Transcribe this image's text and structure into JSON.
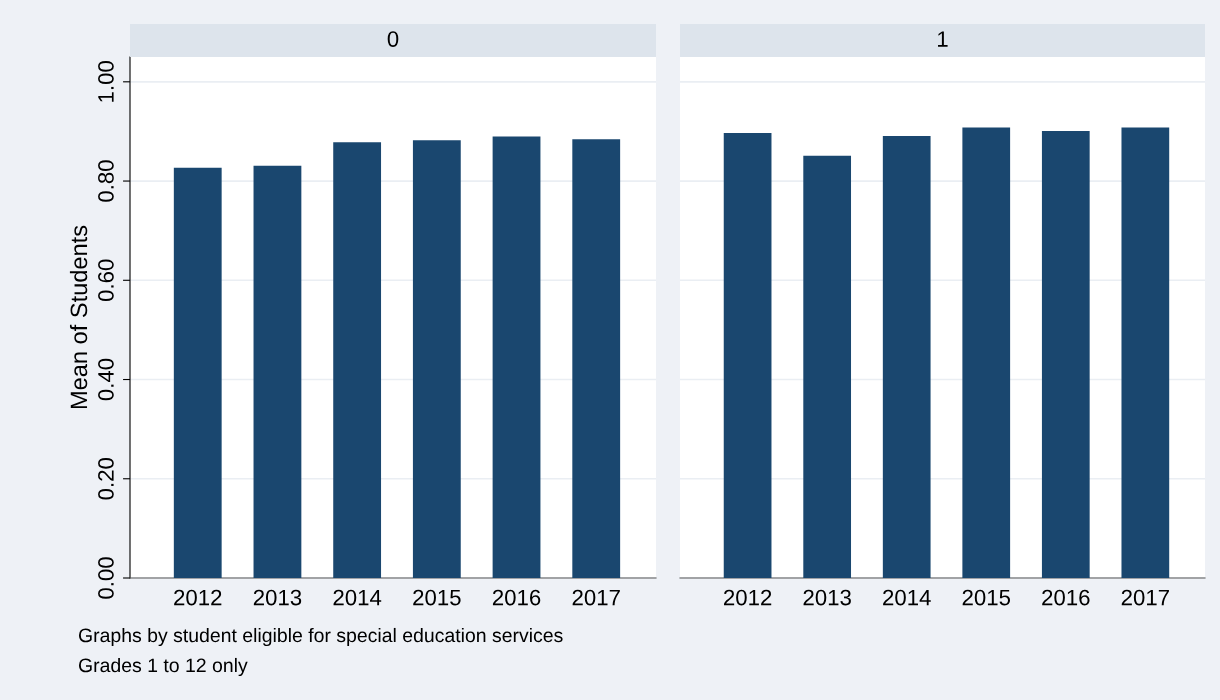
{
  "chart_data": [
    {
      "type": "bar",
      "title": "0",
      "ylabel": "Mean of Students",
      "categories": [
        "2012",
        "2013",
        "2014",
        "2015",
        "2016",
        "2017"
      ],
      "values": [
        0.827,
        0.831,
        0.878,
        0.882,
        0.89,
        0.884
      ],
      "color": "#1a476f",
      "ylim": [
        0,
        1.05
      ],
      "yticks": [
        {
          "value": 0,
          "label": "0.00"
        },
        {
          "value": 0.2,
          "label": "0.20"
        },
        {
          "value": 0.4,
          "label": "0.40"
        },
        {
          "value": 0.6,
          "label": "0.60"
        },
        {
          "value": 0.8,
          "label": "0.80"
        },
        {
          "value": 1,
          "label": "1.00"
        }
      ],
      "grid": "y",
      "legend": false,
      "annotations": [
        "Graphs by student eligible for special education services",
        "Grades 1 to 12 only"
      ]
    },
    {
      "type": "bar",
      "title": "1",
      "categories": [
        "2012",
        "2013",
        "2014",
        "2015",
        "2016",
        "2017"
      ],
      "values": [
        0.897,
        0.851,
        0.891,
        0.908,
        0.901,
        0.908
      ],
      "color": "#1a476f",
      "ylim": [
        0,
        1.05
      ],
      "yticks": [
        {
          "value": 0,
          "label": null
        },
        {
          "value": 0.2,
          "label": null
        },
        {
          "value": 0.4,
          "label": null
        },
        {
          "value": 0.6,
          "label": null
        },
        {
          "value": 0.8,
          "label": null
        },
        {
          "value": 1,
          "label": null
        }
      ],
      "grid": "y",
      "legend": false,
      "tick_labels": "x"
    }
  ]
}
